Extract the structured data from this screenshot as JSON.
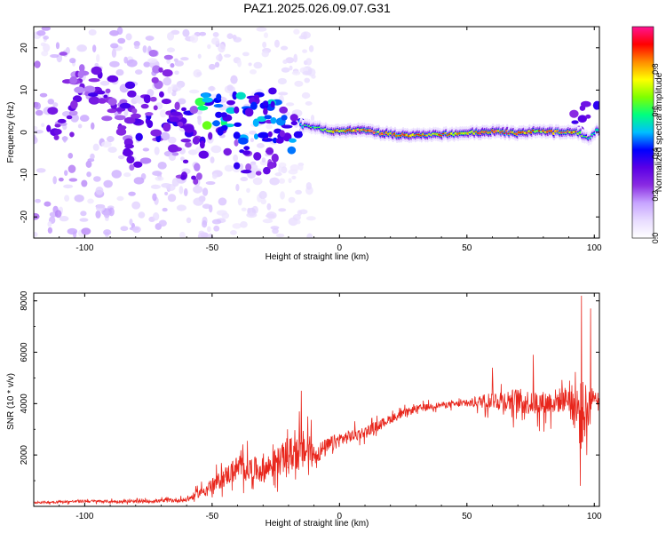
{
  "figure_title": "PAZ1.2025.026.09.07.G31",
  "chart_data": [
    {
      "type": "heatmap",
      "title": "PAZ1.2025.026.09.07.G31",
      "xlabel": "Height of straight line (km)",
      "ylabel": "Frequency (Hz)",
      "xlim": [
        -120,
        102
      ],
      "ylim": [
        -25,
        25
      ],
      "xticks": [
        -100,
        -50,
        0,
        50,
        100
      ],
      "yticks": [
        -20,
        -10,
        0,
        10,
        20
      ],
      "tick_labels_x": [
        "-100",
        "-50",
        "0",
        "50",
        "100"
      ],
      "tick_labels_y": [
        "-20",
        "-10",
        "0",
        "10",
        "20"
      ],
      "colorbar": {
        "label": "Normalized spectral amplitude",
        "range": [
          0,
          1
        ],
        "ticks": [
          "0.0",
          "0.2",
          "0.4",
          "0.6",
          "0.8"
        ],
        "colormap": [
          "#ffffff",
          "#e8dcff",
          "#c7a4ff",
          "#8a2be2",
          "#5a00e6",
          "#0000ff",
          "#00bfff",
          "#00ff7f",
          "#7fff00",
          "#ffff00",
          "#ff8c00",
          "#ff0000",
          "#ff1493"
        ]
      },
      "ridge": {
        "description_free": true,
        "points": [
          {
            "x": -15,
            "f": 1.6,
            "amp": 0.55
          },
          {
            "x": -10,
            "f": 1.2,
            "amp": 0.6
          },
          {
            "x": -5,
            "f": 0.6,
            "amp": 0.7
          },
          {
            "x": 0,
            "f": 0.2,
            "amp": 0.85
          },
          {
            "x": 10,
            "f": 0.5,
            "amp": 0.9
          },
          {
            "x": 20,
            "f": -0.5,
            "amp": 0.9
          },
          {
            "x": 30,
            "f": -0.8,
            "amp": 0.85
          },
          {
            "x": 40,
            "f": -0.5,
            "amp": 0.8
          },
          {
            "x": 50,
            "f": -0.2,
            "amp": 0.8
          },
          {
            "x": 55,
            "f": 0.0,
            "amp": 0.95
          },
          {
            "x": 62,
            "f": 0.2,
            "amp": 0.9
          },
          {
            "x": 70,
            "f": -0.2,
            "amp": 0.9
          },
          {
            "x": 78,
            "f": 0.3,
            "amp": 0.8
          },
          {
            "x": 85,
            "f": 0.0,
            "amp": 0.9
          },
          {
            "x": 93,
            "f": 0.2,
            "amp": 0.85
          },
          {
            "x": 98,
            "f": -1.5,
            "amp": 0.5
          },
          {
            "x": 101,
            "f": 0.5,
            "amp": 0.6
          }
        ]
      },
      "scatter_blobs": [
        {
          "x": -100,
          "f": 8,
          "amp": 0.3
        },
        {
          "x": -95,
          "f": 11,
          "amp": 0.35
        },
        {
          "x": -90,
          "f": 4,
          "amp": 0.3
        },
        {
          "x": -85,
          "f": 9,
          "amp": 0.35
        },
        {
          "x": -80,
          "f": 6,
          "amp": 0.35
        },
        {
          "x": -75,
          "f": 2,
          "amp": 0.35
        },
        {
          "x": -70,
          "f": 5,
          "amp": 0.35
        },
        {
          "x": -65,
          "f": 0,
          "amp": 0.35
        },
        {
          "x": -60,
          "f": 3,
          "amp": 0.35
        },
        {
          "x": -55,
          "f": -2,
          "amp": 0.35
        },
        {
          "x": -52,
          "f": 5,
          "amp": 0.6
        },
        {
          "x": -47,
          "f": 4,
          "amp": 0.55
        },
        {
          "x": -42,
          "f": 2,
          "amp": 0.45
        },
        {
          "x": -38,
          "f": 5,
          "amp": 0.5
        },
        {
          "x": -33,
          "f": 1,
          "amp": 0.45
        },
        {
          "x": -28,
          "f": 6,
          "amp": 0.5
        },
        {
          "x": -25,
          "f": 3,
          "amp": 0.45
        },
        {
          "x": -22,
          "f": -1,
          "amp": 0.45
        },
        {
          "x": -18,
          "f": 2,
          "amp": 0.45
        },
        {
          "x": -30,
          "f": -8,
          "amp": 0.35
        },
        {
          "x": -40,
          "f": -6,
          "amp": 0.35
        },
        {
          "x": -60,
          "f": -8,
          "amp": 0.3
        },
        {
          "x": -80,
          "f": -5,
          "amp": 0.3
        },
        {
          "x": -105,
          "f": 15,
          "amp": 0.3
        },
        {
          "x": -70,
          "f": 15,
          "amp": 0.25
        },
        {
          "x": -110,
          "f": 2,
          "amp": 0.3
        },
        {
          "x": 97,
          "f": 3,
          "amp": 0.4
        }
      ]
    },
    {
      "type": "line",
      "xlabel": "Height of straight line (km)",
      "ylabel": "SNR (10 * v/v)",
      "xlim": [
        -120,
        102
      ],
      "ylim": [
        0,
        8300
      ],
      "xticks": [
        -100,
        -50,
        0,
        50,
        100
      ],
      "yticks": [
        2000,
        4000,
        6000,
        8000
      ],
      "tick_labels_x": [
        "-100",
        "-50",
        "0",
        "50",
        "100"
      ],
      "tick_labels_y": [
        "2000",
        "4000",
        "6000",
        "8000"
      ],
      "line_color": "#e8261c",
      "series": [
        {
          "name": "SNR",
          "envelope": [
            {
              "x": -120,
              "mean": 150,
              "noise": 60
            },
            {
              "x": -100,
              "mean": 200,
              "noise": 80
            },
            {
              "x": -80,
              "mean": 180,
              "noise": 80
            },
            {
              "x": -60,
              "mean": 250,
              "noise": 120
            },
            {
              "x": -50,
              "mean": 800,
              "noise": 400
            },
            {
              "x": -40,
              "mean": 1500,
              "noise": 700
            },
            {
              "x": -30,
              "mean": 1400,
              "noise": 700
            },
            {
              "x": -20,
              "mean": 2000,
              "noise": 900
            },
            {
              "x": -13,
              "mean": 2200,
              "noise": 1200
            },
            {
              "x": -10,
              "mean": 2000,
              "noise": 600
            },
            {
              "x": 0,
              "mean": 2600,
              "noise": 400
            },
            {
              "x": 10,
              "mean": 2900,
              "noise": 300
            },
            {
              "x": 20,
              "mean": 3400,
              "noise": 250
            },
            {
              "x": 30,
              "mean": 3800,
              "noise": 200
            },
            {
              "x": 40,
              "mean": 3950,
              "noise": 150
            },
            {
              "x": 50,
              "mean": 4000,
              "noise": 200
            },
            {
              "x": 60,
              "mean": 4150,
              "noise": 500
            },
            {
              "x": 70,
              "mean": 4100,
              "noise": 700
            },
            {
              "x": 80,
              "mean": 4000,
              "noise": 700
            },
            {
              "x": 90,
              "mean": 4200,
              "noise": 700
            },
            {
              "x": 95,
              "mean": 3500,
              "noise": 2000
            },
            {
              "x": 100,
              "mean": 4300,
              "noise": 400
            },
            {
              "x": 102,
              "mean": 4200,
              "noise": 300
            }
          ],
          "spikes": [
            {
              "x": -15,
              "value": 4500
            },
            {
              "x": -12.5,
              "value": 3500
            },
            {
              "x": 95,
              "value": 8200
            },
            {
              "x": 94.5,
              "value": 800
            },
            {
              "x": 97,
              "value": 2000
            },
            {
              "x": 98.5,
              "value": 7700
            },
            {
              "x": 76,
              "value": 5900
            },
            {
              "x": 60,
              "value": 5400
            }
          ]
        }
      ]
    }
  ]
}
